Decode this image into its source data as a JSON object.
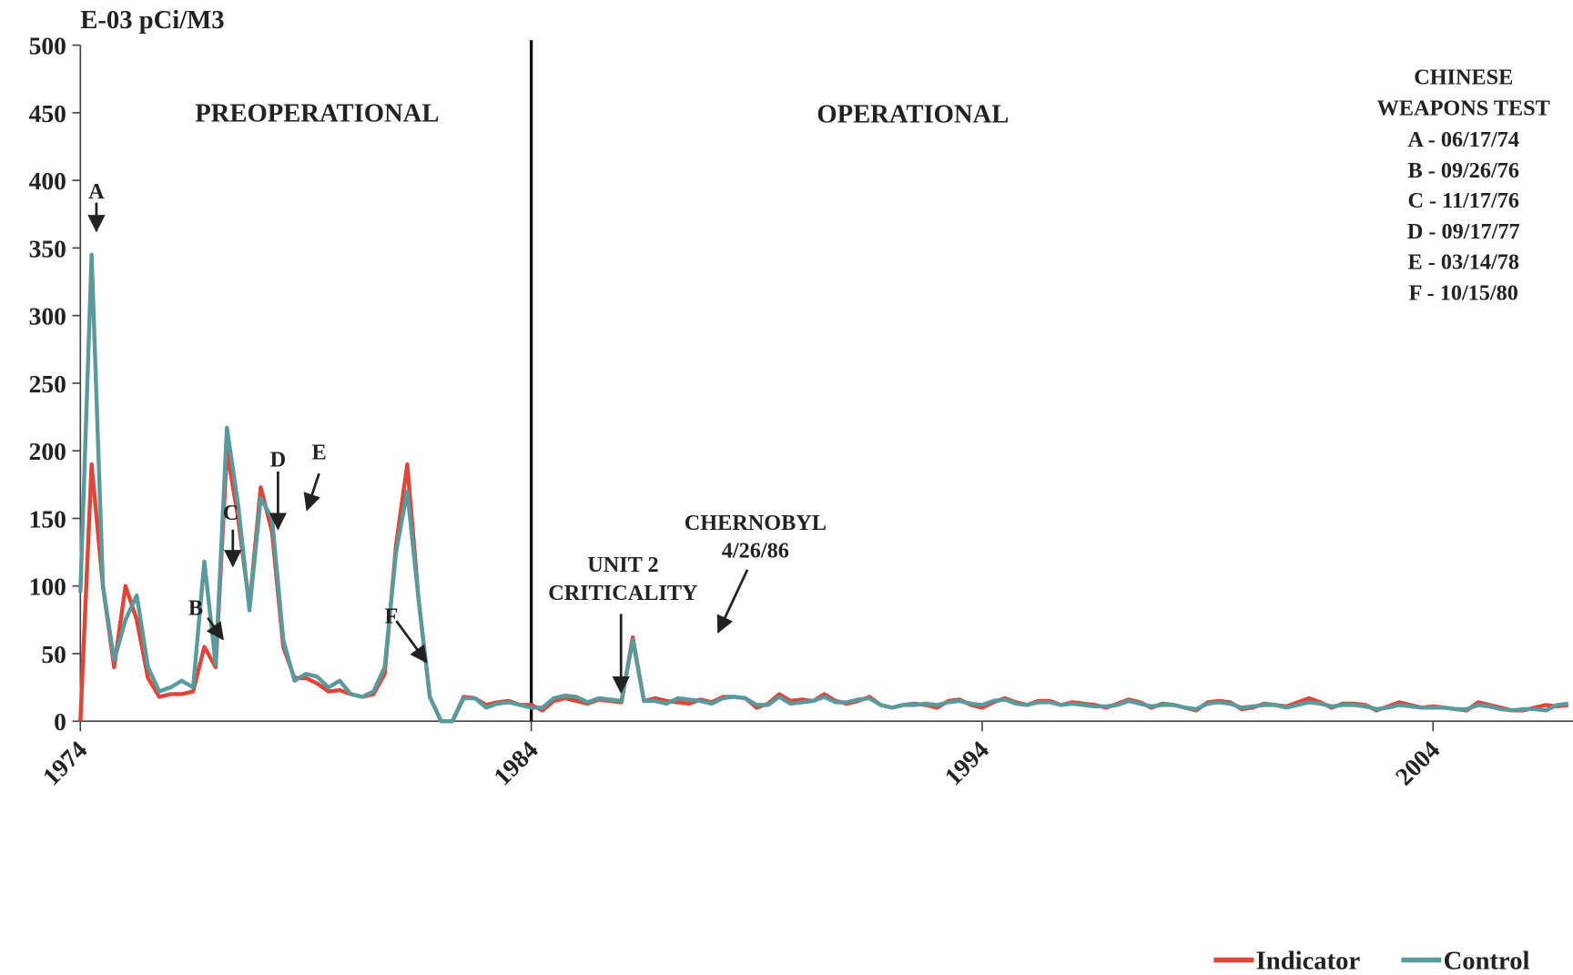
{
  "chart_data": {
    "type": "line",
    "ylabel": "E-03 pCi/M3",
    "x": [
      1974,
      1974.25,
      1974.5,
      1974.75,
      1975,
      1975.25,
      1975.5,
      1975.75,
      1976,
      1976.25,
      1976.5,
      1976.75,
      1977,
      1977.25,
      1977.5,
      1977.75,
      1978,
      1978.25,
      1978.5,
      1978.75,
      1979,
      1979.25,
      1979.5,
      1979.75,
      1980,
      1980.25,
      1980.5,
      1980.75,
      1981,
      1981.25,
      1981.5,
      1981.75,
      1982,
      1982.25,
      1982.5,
      1982.75,
      1983,
      1983.25,
      1983.5,
      1983.75,
      1984,
      1984.25,
      1984.5,
      1984.75,
      1985,
      1985.25,
      1985.5,
      1985.75,
      1986,
      1986.25,
      1986.5,
      1986.75,
      1987,
      1987.25,
      1987.5,
      1987.75,
      1988,
      1988.25,
      1988.5,
      1988.75,
      1989,
      1989.25,
      1989.5,
      1989.75,
      1990,
      1990.25,
      1990.5,
      1990.75,
      1991,
      1991.25,
      1991.5,
      1991.75,
      1992,
      1992.25,
      1992.5,
      1992.75,
      1993,
      1993.25,
      1993.5,
      1993.75,
      1994,
      1994.25,
      1994.5,
      1994.75,
      1995,
      1995.25,
      1995.5,
      1995.75,
      1996,
      1996.25,
      1996.5,
      1996.75,
      1997,
      1997.25,
      1997.5,
      1997.75,
      1998,
      1998.25,
      1998.5,
      1998.75,
      1999,
      1999.25,
      1999.5,
      1999.75,
      2000,
      2000.25,
      2000.5,
      2000.75,
      2001,
      2001.25,
      2001.5,
      2001.75,
      2002,
      2002.25,
      2002.5,
      2002.75,
      2003,
      2003.25,
      2003.5,
      2003.75,
      2004,
      2004.25,
      2004.5,
      2004.75,
      2005,
      2005.25,
      2005.5,
      2005.75,
      2006,
      2006.25,
      2006.5,
      2006.75,
      2007
    ],
    "series": [
      {
        "name": "Indicator",
        "color": "#e0453a",
        "values": [
          0,
          190,
          100,
          40,
          100,
          75,
          32,
          18,
          20,
          20,
          22,
          55,
          40,
          200,
          150,
          85,
          173,
          140,
          55,
          32,
          32,
          28,
          22,
          23,
          20,
          18,
          20,
          35,
          130,
          190,
          90,
          18,
          0,
          0,
          18,
          17,
          12,
          14,
          15,
          12,
          12,
          8,
          15,
          17,
          15,
          13,
          16,
          15,
          14,
          62,
          15,
          17,
          15,
          14,
          13,
          16,
          14,
          18,
          18,
          17,
          10,
          13,
          20,
          15,
          16,
          15,
          20,
          15,
          13,
          15,
          18,
          12,
          10,
          12,
          13,
          12,
          10,
          15,
          16,
          12,
          10,
          14,
          17,
          14,
          12,
          15,
          15,
          12,
          14,
          13,
          12,
          10,
          13,
          16,
          14,
          10,
          13,
          12,
          10,
          8,
          14,
          15,
          14,
          9,
          10,
          13,
          12,
          11,
          14,
          17,
          14,
          10,
          13,
          13,
          12,
          8,
          11,
          14,
          12,
          10,
          11,
          10,
          9,
          8,
          14,
          12,
          10,
          8,
          8,
          10,
          12,
          11,
          12
        ]
      },
      {
        "name": "Control",
        "color": "#5a9a9c",
        "values": [
          95,
          345,
          100,
          45,
          75,
          93,
          40,
          22,
          25,
          30,
          25,
          118,
          42,
          217,
          160,
          82,
          165,
          150,
          60,
          30,
          35,
          33,
          25,
          30,
          20,
          18,
          22,
          40,
          125,
          170,
          90,
          18,
          0,
          0,
          17,
          17,
          10,
          13,
          14,
          12,
          10,
          10,
          17,
          19,
          18,
          14,
          17,
          16,
          15,
          60,
          15,
          15,
          13,
          17,
          16,
          15,
          13,
          17,
          18,
          17,
          12,
          12,
          18,
          13,
          14,
          15,
          18,
          14,
          14,
          16,
          17,
          12,
          10,
          12,
          12,
          13,
          12,
          14,
          15,
          13,
          12,
          15,
          16,
          13,
          12,
          14,
          14,
          12,
          13,
          12,
          11,
          11,
          12,
          15,
          13,
          11,
          12,
          12,
          10,
          9,
          13,
          14,
          13,
          10,
          11,
          12,
          12,
          10,
          12,
          14,
          13,
          11,
          12,
          12,
          11,
          9,
          10,
          12,
          11,
          10,
          10,
          10,
          9,
          9,
          12,
          11,
          9,
          8,
          9,
          9,
          8,
          12,
          13
        ]
      }
    ],
    "xlim": [
      1974,
      2007.1
    ],
    "xticks": [
      1974,
      1984,
      1994,
      2004
    ],
    "ylim": [
      0,
      500
    ],
    "yticks": [
      0,
      50,
      100,
      150,
      200,
      250,
      300,
      350,
      400,
      450,
      500
    ],
    "divider_x": 1984,
    "annotations": [
      "PREOPERATIONAL",
      "OPERATIONAL",
      "CHINESE",
      "WEAPONS TEST",
      "A - 06/17/74",
      "B - 09/26/76",
      "C - 11/17/76",
      "D - 09/17/77",
      "E - 03/14/78",
      "F - 10/15/80",
      "A",
      "B",
      "C",
      "D",
      "E",
      "F",
      "UNIT 2",
      "CRITICALITY",
      "CHERNOBYL",
      "4/26/86"
    ],
    "legend": "bottom-right"
  }
}
